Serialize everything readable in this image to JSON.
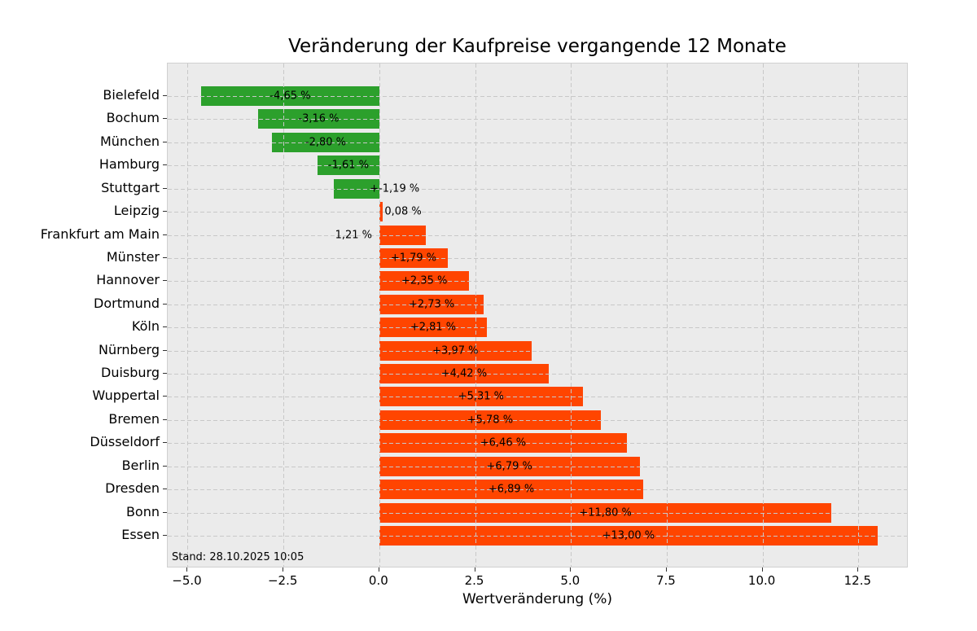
{
  "figure": {
    "title": "Veränderung der Kaufpreise vergangende 12 Monate",
    "xlabel": "Wertveränderung (%)",
    "stand_note": "Stand: 28.10.2025 10:05"
  },
  "colors": {
    "bar_positive": "#ff4500",
    "bar_negative": "#2ca02c",
    "plot_background": "#ebebeb",
    "gridline": "#c8c8c8",
    "text": "#000000"
  },
  "chart_data": {
    "type": "bar",
    "orientation": "horizontal",
    "title": "Veränderung der Kaufpreise vergangende 12 Monate",
    "xlabel": "Wertveränderung (%)",
    "ylabel": "",
    "xlim": [
      -5.52,
      13.81
    ],
    "grid": "dashed, both axes, drawn over bars",
    "legend": "none",
    "annotation": "Stand: 28.10.2025 10:05",
    "categories": [
      "Bielefeld",
      "Bochum",
      "München",
      "Hamburg",
      "Stuttgart",
      "Leipzig",
      "Frankfurt am Main",
      "Münster",
      "Hannover",
      "Dortmund",
      "Köln",
      "Nürnberg",
      "Duisburg",
      "Wuppertal",
      "Bremen",
      "Düsseldorf",
      "Berlin",
      "Dresden",
      "Bonn",
      "Essen"
    ],
    "values": [
      -4.65,
      -3.16,
      -2.8,
      -1.61,
      -1.19,
      0.08,
      1.21,
      1.79,
      2.35,
      2.73,
      2.81,
      3.97,
      4.42,
      5.31,
      5.78,
      6.46,
      6.79,
      6.89,
      11.8,
      13.0
    ],
    "bar_labels": [
      "-4,65 %",
      "-3,16 %",
      "-2,80 %",
      "-1,61 %",
      "+-1,19 %",
      "0,08 %",
      "1,21 %",
      "+1,79 %",
      "+2,35 %",
      "+2,73 %",
      "+2,81 %",
      "+3,97 %",
      "+4,42 %",
      "+5,31 %",
      "+5,78 %",
      "+6,46 %",
      "+6,79 %",
      "+6,89 %",
      "+11,80 %",
      "+13,00 %"
    ],
    "label_center_override_units": {
      "4": 0.4,
      "5": 0.62,
      "6": -0.67
    },
    "xticks": [
      -5.0,
      -2.5,
      0.0,
      2.5,
      5.0,
      7.5,
      10.0,
      12.5
    ],
    "xtick_labels": [
      "−5.0",
      "−2.5",
      "0.0",
      "2.5",
      "5.0",
      "7.5",
      "10.0",
      "12.5"
    ]
  }
}
